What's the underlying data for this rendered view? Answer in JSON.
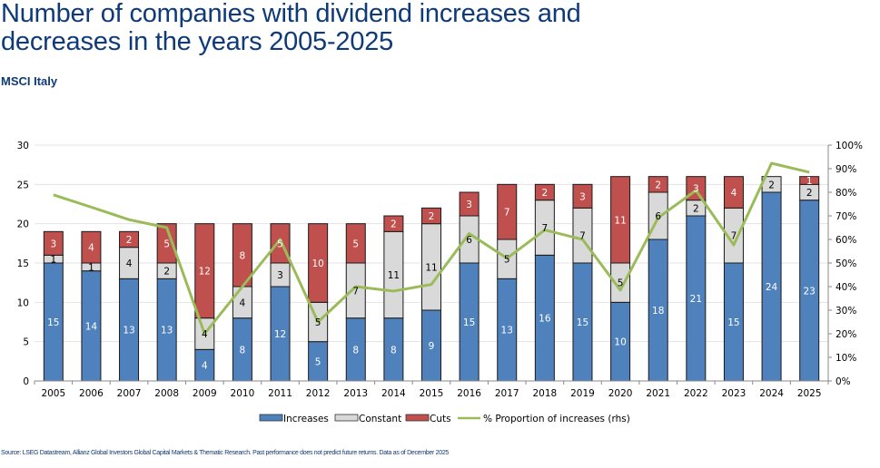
{
  "header": {
    "title_line1": "Number of companies with dividend increases and",
    "title_line2": "decreases in the years 2005-2025",
    "subtitle": "MSCI Italy"
  },
  "footer": {
    "source": "Source: LSEG Datastream, Allianz Global Investors Global Capital Markets & Thematic Research. Past performance does not predict future returns. Data as of December 2025"
  },
  "colors": {
    "increases": "#4f81bd",
    "constant": "#d9d9d9",
    "cuts": "#c0504d",
    "line": "#9bbb59",
    "title": "#0f3a7a"
  },
  "chart_data": {
    "type": "bar",
    "stacked": true,
    "title": "Number of companies with dividend increases and decreases in the years 2005-2025",
    "subtitle": "MSCI Italy",
    "categories": [
      "2005",
      "2006",
      "2007",
      "2008",
      "2009",
      "2010",
      "2011",
      "2012",
      "2013",
      "2014",
      "2015",
      "2016",
      "2017",
      "2018",
      "2019",
      "2020",
      "2021",
      "2022",
      "2023",
      "2024",
      "2025"
    ],
    "series": [
      {
        "name": "Increases",
        "kind": "bar",
        "axis": "left",
        "values": [
          15,
          14,
          13,
          13,
          4,
          8,
          12,
          5,
          8,
          8,
          9,
          15,
          13,
          16,
          15,
          10,
          18,
          21,
          15,
          24,
          23
        ]
      },
      {
        "name": "Constant",
        "kind": "bar",
        "axis": "left",
        "values": [
          1,
          1,
          4,
          2,
          4,
          4,
          3,
          5,
          7,
          11,
          11,
          6,
          5,
          7,
          7,
          5,
          6,
          2,
          7,
          2,
          2
        ]
      },
      {
        "name": "Cuts",
        "kind": "bar",
        "axis": "left",
        "values": [
          3,
          4,
          2,
          5,
          12,
          8,
          5,
          10,
          5,
          2,
          2,
          3,
          7,
          2,
          3,
          11,
          2,
          3,
          4,
          0,
          1
        ]
      },
      {
        "name": "% Proportion of increases (rhs)",
        "kind": "line",
        "axis": "right",
        "values": [
          78.9,
          73.7,
          68.4,
          65.0,
          20.0,
          40.0,
          60.0,
          25.0,
          40.0,
          38.1,
          40.9,
          62.5,
          52.0,
          64.0,
          60.0,
          38.5,
          69.2,
          80.8,
          57.7,
          92.3,
          88.5
        ]
      }
    ],
    "y_left": {
      "range": [
        0,
        30
      ],
      "ticks": [
        "0",
        "5",
        "10",
        "15",
        "20",
        "25",
        "30"
      ]
    },
    "y_right": {
      "range": [
        0,
        100
      ],
      "ticks": [
        "0%",
        "10%",
        "20%",
        "30%",
        "40%",
        "50%",
        "60%",
        "70%",
        "80%",
        "90%",
        "100%"
      ]
    },
    "xlabel": "",
    "ylabel": "",
    "grid": true,
    "legend_position": "bottom",
    "legend": [
      "Increases",
      "Constant",
      "Cuts",
      "% Proportion of increases (rhs)"
    ]
  }
}
